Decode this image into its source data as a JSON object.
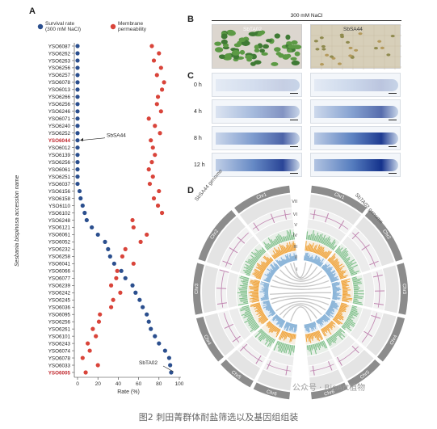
{
  "panels": {
    "a": "A",
    "b": "B",
    "c": "C",
    "d": "D"
  },
  "chart_data": {
    "type": "scatter",
    "xlabel": "Rate (%)",
    "ylabel": "Sesbania bispinosa accession name",
    "xlim": [
      0,
      100
    ],
    "xticks": [
      0,
      20,
      40,
      60,
      80,
      100
    ],
    "legend": [
      {
        "name": "Survival rate (300 mM NaCl)",
        "color": "#2b4f8e"
      },
      {
        "name": "Membrane permeability",
        "color": "#d9443a"
      }
    ],
    "categories": [
      "YSO6087",
      "YSO6262",
      "YSO6263",
      "YSO6256",
      "YSO6257",
      "YSO6078",
      "YSO6013",
      "YSO6266",
      "YSO6256",
      "YSO6246",
      "YSO6071",
      "YSO6240",
      "YSO6252",
      "YSO6044",
      "YSO6012",
      "YSO6139",
      "YSO6256",
      "YSO6061",
      "YSO6251",
      "YSO6037",
      "YSO6156",
      "YSO6158",
      "YSO6110",
      "YSO6102",
      "YSO6248",
      "YSO6121",
      "YSO6061",
      "YSO6052",
      "YSO6232",
      "YSO6258",
      "YSO6041",
      "YSO6066",
      "YSO6077",
      "YSO6239",
      "YSO6242",
      "YSO6245",
      "YSO6036",
      "YSO6095",
      "YSO6256",
      "YSO6261",
      "YSO6101",
      "YSO6243",
      "YSO6074",
      "YSO6078",
      "YSO6033",
      "YSO6005"
    ],
    "highlighted": [
      "YSO6044",
      "YSO6005"
    ],
    "series": [
      {
        "name": "Survival rate (300 mM NaCl)",
        "values": [
          0,
          0,
          0,
          0,
          0,
          0,
          0,
          0,
          0,
          0,
          0,
          0,
          0,
          0,
          0,
          0,
          0,
          0,
          0,
          0,
          2,
          3,
          5,
          7,
          9,
          14,
          20,
          27,
          30,
          32,
          36,
          43,
          47,
          54,
          57,
          61,
          64,
          68,
          70,
          72,
          76,
          80,
          86,
          90,
          91,
          92
        ]
      },
      {
        "name": "Membrane permeability",
        "values": [
          73,
          80,
          75,
          82,
          78,
          85,
          83,
          79,
          78,
          82,
          70,
          76,
          81,
          72,
          74,
          76,
          73,
          70,
          74,
          71,
          80,
          75,
          79,
          83,
          54,
          55,
          68,
          62,
          47,
          44,
          55,
          39,
          38,
          33,
          42,
          35,
          33,
          22,
          21,
          15,
          18,
          10,
          12,
          5,
          20,
          8
        ]
      }
    ],
    "annotations": [
      "SbSA44",
      "SbTA02"
    ]
  },
  "panel_b": {
    "header": "300 mM NaCl",
    "left_label": "SbTA02",
    "right_label": "SbSA44"
  },
  "panel_c": {
    "times": [
      "0 h",
      "4 h",
      "8 h",
      "12 h"
    ],
    "intensity_left": [
      0.05,
      0.35,
      0.6,
      0.75
    ],
    "intensity_right": [
      0.1,
      0.55,
      0.8,
      0.95
    ]
  },
  "panel_d": {
    "genome_left": "SbSA44 genome",
    "genome_right": "SbTA02 genome",
    "tracks": [
      "VII",
      "VI",
      "V",
      "IV",
      "III",
      "II",
      "I"
    ],
    "chromosomes_right": [
      "Chr1",
      "Chr2",
      "Chr3",
      "Chr4",
      "Chr5",
      "Chr6"
    ],
    "chromosomes_left": [
      "Chr1",
      "Chr2",
      "Chr3",
      "Chr4",
      "Chr5",
      "Chr6"
    ]
  },
  "watermark": "公众号 · BioArt植物",
  "caption": "图2 刺田菁群体耐盐筛选以及基因组组装",
  "colors": {
    "survival": "#2b4f8e",
    "membrane": "#d9443a",
    "track_v": "#c084b0",
    "track_iv": "#7fc08a",
    "track_iii": "#f0a640",
    "track_ii": "#8ab4d8",
    "stain": "#2f5fb0"
  }
}
